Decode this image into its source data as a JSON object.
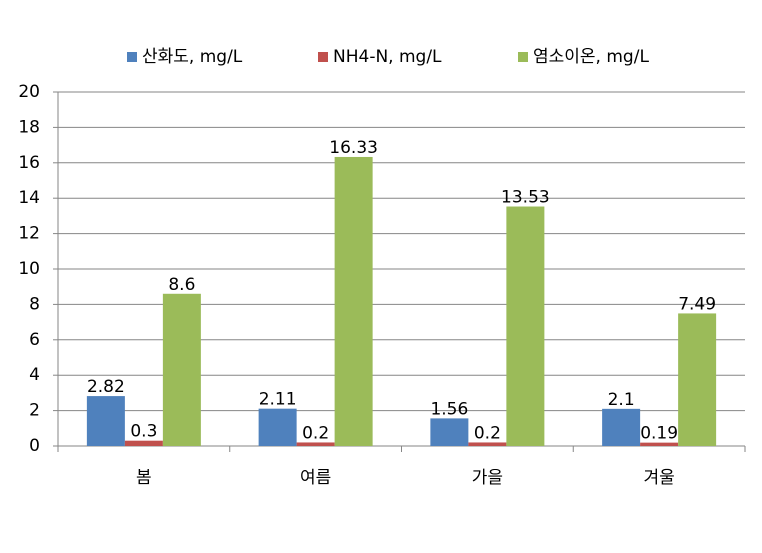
{
  "chart_data": {
    "type": "bar",
    "categories": [
      "봄",
      "여름",
      "가을",
      "겨울"
    ],
    "series": [
      {
        "name": "산화도, mg/L",
        "values": [
          2.82,
          2.11,
          1.56,
          2.1
        ],
        "color": "#4F81BD"
      },
      {
        "name": "NH4-N, mg/L",
        "values": [
          0.3,
          0.2,
          0.2,
          0.19
        ],
        "color": "#C0504D"
      },
      {
        "name": "염소이온, mg/L",
        "values": [
          8.6,
          16.33,
          13.53,
          7.49
        ],
        "color": "#9BBB59"
      }
    ],
    "ylim": [
      0,
      20
    ],
    "yticks": [
      0,
      2,
      4,
      6,
      8,
      10,
      12,
      14,
      16,
      18,
      20
    ],
    "grid": true,
    "legend": "top",
    "gridline_color": "#868686"
  }
}
